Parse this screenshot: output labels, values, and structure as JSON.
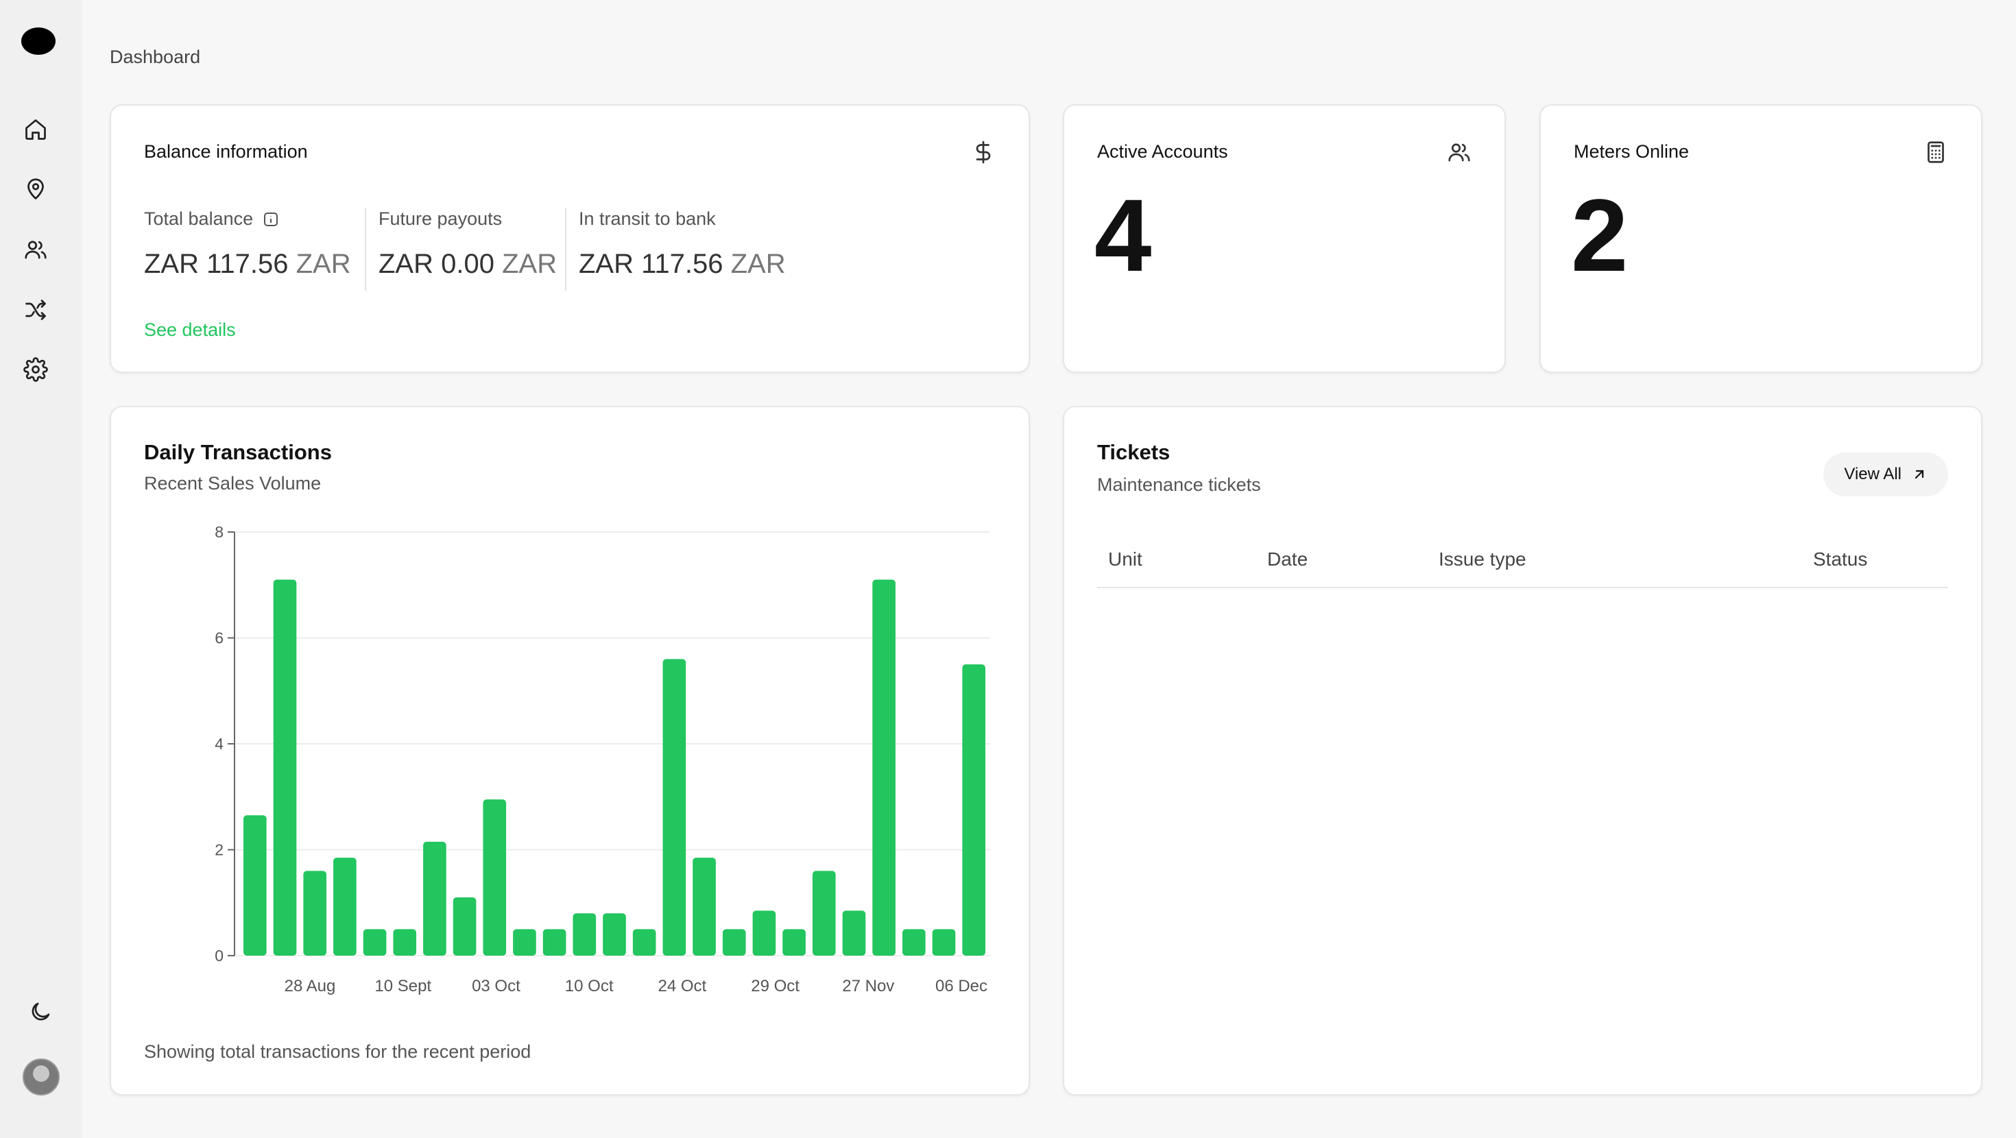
{
  "sidebar": {
    "items": [
      {
        "name": "home-icon"
      },
      {
        "name": "location-icon"
      },
      {
        "name": "users-icon"
      },
      {
        "name": "shuffle-icon"
      },
      {
        "name": "settings-icon"
      }
    ],
    "bottom": [
      {
        "name": "moon-icon"
      },
      {
        "name": "avatar"
      }
    ]
  },
  "breadcrumb": "Dashboard",
  "balance": {
    "title": "Balance information",
    "icon": "dollar-icon",
    "columns": [
      {
        "label": "Total balance",
        "amount": "ZAR 117.56",
        "currency": "ZAR",
        "has_info_icon": true
      },
      {
        "label": "Future payouts",
        "amount": "ZAR 0.00",
        "currency": "ZAR"
      },
      {
        "label": "In transit to bank",
        "amount": "ZAR 117.56",
        "currency": "ZAR"
      }
    ],
    "link": "See details",
    "link_color": "#22c55e"
  },
  "active_accounts": {
    "title": "Active Accounts",
    "value": "4",
    "icon": "users-icon"
  },
  "meters_online": {
    "title": "Meters Online",
    "value": "2",
    "icon": "calculator-icon"
  },
  "daily": {
    "title": "Daily Transactions",
    "subtitle": "Recent Sales Volume",
    "footer": "Showing total transactions for the recent period"
  },
  "tickets": {
    "title": "Tickets",
    "subtitle": "Maintenance tickets",
    "view_all": "View All",
    "columns": [
      "Unit",
      "Date",
      "Issue type",
      "Status"
    ],
    "rows": []
  },
  "chart_data": {
    "type": "bar",
    "x_labels": [
      "28 Aug",
      "10 Sept",
      "03 Oct",
      "10 Oct",
      "24 Oct",
      "29 Oct",
      "27 Nov",
      "06 Dec"
    ],
    "values": [
      2.65,
      7.1,
      1.6,
      1.85,
      0.5,
      0.5,
      2.15,
      1.1,
      2.95,
      0.5,
      0.5,
      0.8,
      0.8,
      0.5,
      5.6,
      1.85,
      0.5,
      0.85,
      0.5,
      1.6,
      0.85,
      7.1,
      0.5,
      0.5,
      5.5
    ],
    "yticks": [
      0,
      2,
      4,
      6,
      8
    ],
    "ylim": [
      0,
      8
    ],
    "color": "#22c55e",
    "grid": true
  }
}
